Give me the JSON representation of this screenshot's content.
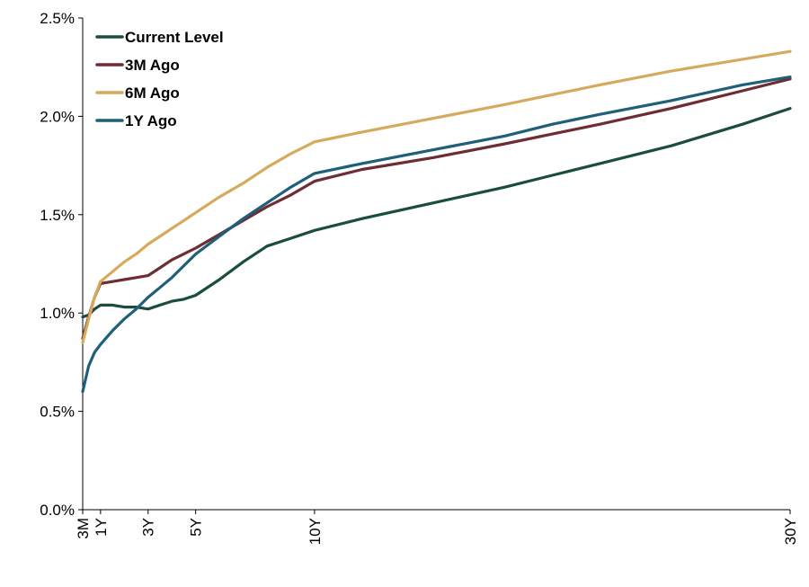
{
  "chart_data": {
    "type": "line",
    "title": "",
    "xlabel": "",
    "ylabel": "",
    "xlim": [
      0.25,
      30
    ],
    "ylim": [
      0,
      2.5
    ],
    "y_ticks": [
      {
        "value": 0.0,
        "label": "0.0%"
      },
      {
        "value": 0.5,
        "label": "0.5%"
      },
      {
        "value": 1.0,
        "label": "1.0%"
      },
      {
        "value": 1.5,
        "label": "1.5%"
      },
      {
        "value": 2.0,
        "label": "2.0%"
      },
      {
        "value": 2.5,
        "label": "2.5%"
      }
    ],
    "x_ticks": [
      {
        "value": 0.25,
        "label": "3M"
      },
      {
        "value": 1,
        "label": "1Y"
      },
      {
        "value": 3,
        "label": "3Y"
      },
      {
        "value": 5,
        "label": "5Y"
      },
      {
        "value": 10,
        "label": "10Y"
      },
      {
        "value": 30,
        "label": "30Y"
      }
    ],
    "grid": false,
    "legend_position": "top-left",
    "series": [
      {
        "name": "Current Level",
        "color": "#1b4d3e",
        "points": [
          [
            0.25,
            0.98
          ],
          [
            0.5,
            0.99
          ],
          [
            0.75,
            1.02
          ],
          [
            1,
            1.04
          ],
          [
            1.5,
            1.04
          ],
          [
            2,
            1.03
          ],
          [
            2.5,
            1.03
          ],
          [
            3,
            1.02
          ],
          [
            3.5,
            1.04
          ],
          [
            4,
            1.06
          ],
          [
            4.5,
            1.07
          ],
          [
            5,
            1.09
          ],
          [
            6,
            1.17
          ],
          [
            7,
            1.26
          ],
          [
            8,
            1.34
          ],
          [
            9,
            1.38
          ],
          [
            10,
            1.42
          ],
          [
            12,
            1.48
          ],
          [
            15,
            1.56
          ],
          [
            18,
            1.64
          ],
          [
            20,
            1.7
          ],
          [
            22,
            1.76
          ],
          [
            25,
            1.85
          ],
          [
            28,
            1.96
          ],
          [
            30,
            2.04
          ]
        ]
      },
      {
        "name": "3M Ago",
        "color": "#6e2c34",
        "points": [
          [
            0.25,
            0.87
          ],
          [
            0.5,
            0.98
          ],
          [
            0.75,
            1.08
          ],
          [
            1,
            1.15
          ],
          [
            1.5,
            1.16
          ],
          [
            2,
            1.17
          ],
          [
            2.5,
            1.18
          ],
          [
            3,
            1.19
          ],
          [
            3.5,
            1.23
          ],
          [
            4,
            1.27
          ],
          [
            4.5,
            1.3
          ],
          [
            5,
            1.33
          ],
          [
            6,
            1.4
          ],
          [
            7,
            1.47
          ],
          [
            8,
            1.54
          ],
          [
            9,
            1.6
          ],
          [
            10,
            1.67
          ],
          [
            12,
            1.73
          ],
          [
            15,
            1.79
          ],
          [
            18,
            1.86
          ],
          [
            20,
            1.91
          ],
          [
            22,
            1.96
          ],
          [
            25,
            2.04
          ],
          [
            28,
            2.13
          ],
          [
            30,
            2.19
          ]
        ]
      },
      {
        "name": "6M Ago",
        "color": "#d6aa5c",
        "points": [
          [
            0.25,
            0.85
          ],
          [
            0.5,
            0.97
          ],
          [
            0.75,
            1.08
          ],
          [
            1,
            1.16
          ],
          [
            1.5,
            1.21
          ],
          [
            2,
            1.26
          ],
          [
            2.5,
            1.3
          ],
          [
            3,
            1.35
          ],
          [
            3.5,
            1.39
          ],
          [
            4,
            1.43
          ],
          [
            4.5,
            1.47
          ],
          [
            5,
            1.51
          ],
          [
            6,
            1.59
          ],
          [
            7,
            1.66
          ],
          [
            8,
            1.74
          ],
          [
            9,
            1.81
          ],
          [
            10,
            1.87
          ],
          [
            12,
            1.92
          ],
          [
            15,
            1.99
          ],
          [
            18,
            2.06
          ],
          [
            20,
            2.11
          ],
          [
            22,
            2.16
          ],
          [
            25,
            2.23
          ],
          [
            28,
            2.29
          ],
          [
            30,
            2.33
          ]
        ]
      },
      {
        "name": "1Y Ago",
        "color": "#1f5f7a",
        "points": [
          [
            0.25,
            0.6
          ],
          [
            0.5,
            0.73
          ],
          [
            0.75,
            0.8
          ],
          [
            1,
            0.84
          ],
          [
            1.5,
            0.91
          ],
          [
            2,
            0.97
          ],
          [
            2.5,
            1.02
          ],
          [
            3,
            1.08
          ],
          [
            3.5,
            1.13
          ],
          [
            4,
            1.18
          ],
          [
            4.5,
            1.24
          ],
          [
            5,
            1.3
          ],
          [
            6,
            1.39
          ],
          [
            7,
            1.48
          ],
          [
            8,
            1.56
          ],
          [
            9,
            1.64
          ],
          [
            10,
            1.71
          ],
          [
            12,
            1.76
          ],
          [
            15,
            1.83
          ],
          [
            18,
            1.9
          ],
          [
            20,
            1.96
          ],
          [
            22,
            2.01
          ],
          [
            25,
            2.08
          ],
          [
            28,
            2.16
          ],
          [
            30,
            2.2
          ]
        ]
      }
    ]
  }
}
